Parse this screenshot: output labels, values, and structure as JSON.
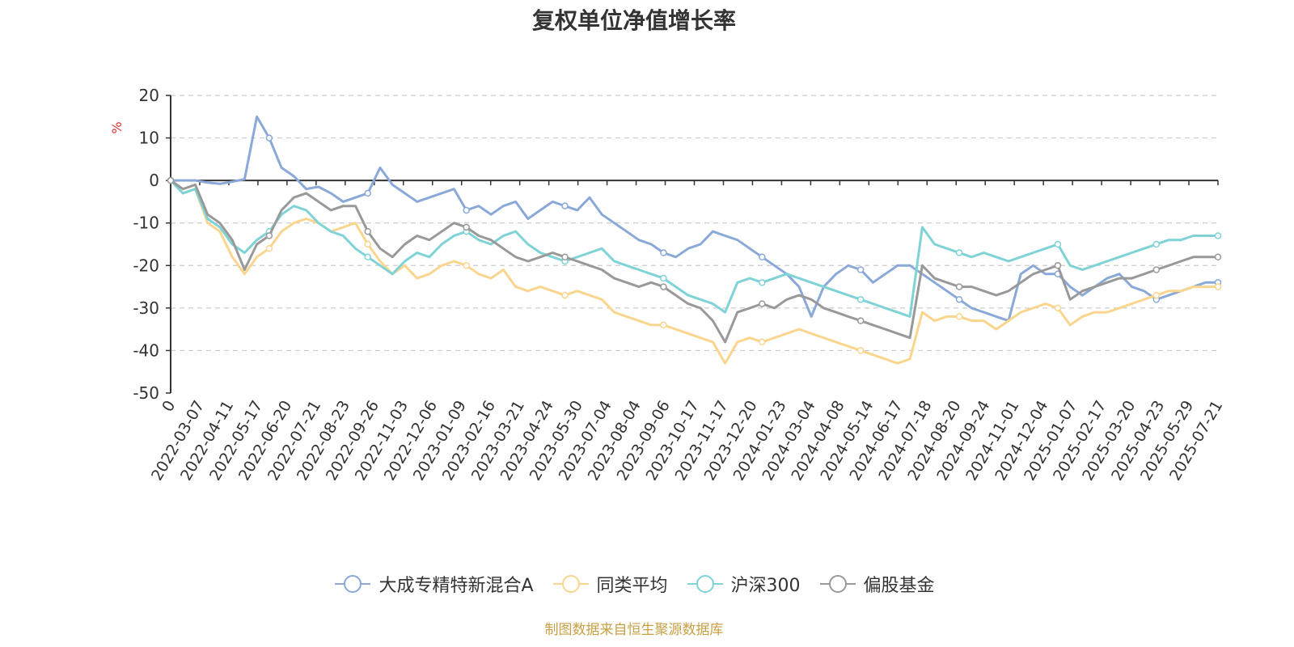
{
  "chart_data": {
    "type": "line",
    "title": "复权单位净值增长率",
    "ylabel": "%",
    "ylim": [
      -50,
      20
    ],
    "yticks": [
      20,
      10,
      0,
      -10,
      -20,
      -30,
      -40,
      -50
    ],
    "xticks": [
      "0",
      "2022-03-07",
      "2022-04-11",
      "2022-05-17",
      "2022-06-20",
      "2022-07-21",
      "2022-08-23",
      "2022-09-26",
      "2022-11-03",
      "2022-12-06",
      "2023-01-09",
      "2023-02-16",
      "2023-03-21",
      "2023-04-24",
      "2023-05-30",
      "2023-07-04",
      "2023-08-04",
      "2023-09-06",
      "2023-10-17",
      "2023-11-17",
      "2023-12-20",
      "2024-01-23",
      "2024-03-04",
      "2024-04-08",
      "2024-05-14",
      "2024-06-17",
      "2024-07-18",
      "2024-08-20",
      "2024-09-24",
      "2024-11-01",
      "2024-12-04",
      "2025-01-07",
      "2025-02-17",
      "2025-03-20",
      "2025-04-23",
      "2025-05-29",
      "2025-07-21"
    ],
    "grid": true,
    "legend_position": "bottom",
    "series": [
      {
        "name": "大成专精特新混合A",
        "color": "#8aa9d8",
        "values": [
          0,
          0,
          0,
          -0.5,
          -0.8,
          -0.3,
          0.3,
          15,
          10,
          3,
          1,
          -2,
          -1.5,
          -3,
          -5,
          -4,
          -3,
          3,
          -1,
          -3,
          -5,
          -4,
          -3,
          -2,
          -7,
          -6,
          -8,
          -6,
          -5,
          -9,
          -7,
          -5,
          -6,
          -7,
          -4,
          -8,
          -10,
          -12,
          -14,
          -15,
          -17,
          -18,
          -16,
          -15,
          -12,
          -13,
          -14,
          -16,
          -18,
          -20,
          -22,
          -25,
          -32,
          -25,
          -22,
          -20,
          -21,
          -24,
          -22,
          -20,
          -20,
          -22,
          -24,
          -26,
          -28,
          -30,
          -31,
          -32,
          -33,
          -22,
          -20,
          -22,
          -22,
          -25,
          -27,
          -25,
          -23,
          -22,
          -25,
          -26,
          -28,
          -27,
          -26,
          -25,
          -24,
          -24
        ]
      },
      {
        "name": "同类平均",
        "color": "#f9d58e",
        "values": [
          0,
          -3,
          -2,
          -10,
          -12,
          -18,
          -22,
          -18,
          -16,
          -12,
          -10,
          -9,
          -10,
          -12,
          -11,
          -10,
          -15,
          -19,
          -22,
          -20,
          -23,
          -22,
          -20,
          -19,
          -20,
          -22,
          -23,
          -21,
          -25,
          -26,
          -25,
          -26,
          -27,
          -26,
          -27,
          -28,
          -31,
          -32,
          -33,
          -34,
          -34,
          -35,
          -36,
          -37,
          -38,
          -43,
          -38,
          -37,
          -38,
          -37,
          -36,
          -35,
          -36,
          -37,
          -38,
          -39,
          -40,
          -41,
          -42,
          -43,
          -42,
          -31,
          -33,
          -32,
          -32,
          -33,
          -33,
          -35,
          -33,
          -31,
          -30,
          -29,
          -30,
          -34,
          -32,
          -31,
          -31,
          -30,
          -29,
          -28,
          -27,
          -26,
          -26,
          -25,
          -25,
          -25
        ]
      },
      {
        "name": "沪深300",
        "color": "#7fd3d6",
        "values": [
          0,
          -3,
          -2,
          -9,
          -11,
          -15,
          -17,
          -14,
          -12,
          -8,
          -6,
          -7,
          -10,
          -12,
          -13,
          -16,
          -18,
          -20,
          -22,
          -19,
          -17,
          -18,
          -15,
          -13,
          -12,
          -14,
          -15,
          -13,
          -12,
          -15,
          -17,
          -18,
          -19,
          -18,
          -17,
          -16,
          -19,
          -20,
          -21,
          -22,
          -23,
          -25,
          -27,
          -28,
          -29,
          -31,
          -24,
          -23,
          -24,
          -23,
          -22,
          -23,
          -24,
          -25,
          -26,
          -27,
          -28,
          -29,
          -30,
          -31,
          -32,
          -11,
          -15,
          -16,
          -17,
          -18,
          -17,
          -18,
          -19,
          -18,
          -17,
          -16,
          -15,
          -20,
          -21,
          -20,
          -19,
          -18,
          -17,
          -16,
          -15,
          -14,
          -14,
          -13,
          -13,
          -13
        ]
      },
      {
        "name": "偏股基金",
        "color": "#999999",
        "values": [
          0,
          -2,
          -1,
          -8,
          -10,
          -14,
          -21,
          -15,
          -13,
          -7,
          -4,
          -3,
          -5,
          -7,
          -6,
          -6,
          -12,
          -16,
          -18,
          -15,
          -13,
          -14,
          -12,
          -10,
          -11,
          -13,
          -14,
          -16,
          -18,
          -19,
          -18,
          -17,
          -18,
          -19,
          -20,
          -21,
          -23,
          -24,
          -25,
          -24,
          -25,
          -27,
          -29,
          -30,
          -33,
          -38,
          -31,
          -30,
          -29,
          -30,
          -28,
          -27,
          -28,
          -30,
          -31,
          -32,
          -33,
          -34,
          -35,
          -36,
          -37,
          -20,
          -23,
          -24,
          -25,
          -25,
          -26,
          -27,
          -26,
          -24,
          -22,
          -21,
          -20,
          -28,
          -26,
          -25,
          -24,
          -23,
          -23,
          -22,
          -21,
          -20,
          -19,
          -18,
          -18,
          -18
        ]
      }
    ]
  },
  "legend": {
    "items": [
      "大成专精特新混合A",
      "同类平均",
      "沪深300",
      "偏股基金"
    ]
  },
  "source_note": "制图数据来自恒生聚源数据库"
}
